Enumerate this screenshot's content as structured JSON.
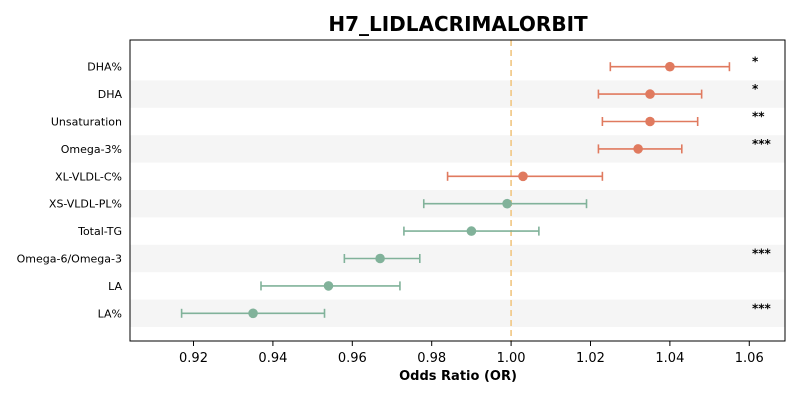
{
  "chart_data": {
    "type": "forest",
    "title": "H7_LIDLACRIMALORBIT",
    "xlabel": "Odds Ratio (OR)",
    "xlim": [
      0.904,
      1.069
    ],
    "xticks": [
      "0.92",
      "0.94",
      "0.96",
      "0.98",
      "1.00",
      "1.02",
      "1.04",
      "1.06"
    ],
    "reference_line": 1.0,
    "colors": {
      "positive": "#e07a5f",
      "negative": "#81b29a",
      "reference": "#f2cc8f",
      "stripe": "#f5f5f5"
    },
    "rows": [
      {
        "label": "DHA%",
        "or": 1.04,
        "lo": 1.025,
        "hi": 1.055,
        "sig": "*"
      },
      {
        "label": "DHA",
        "or": 1.035,
        "lo": 1.022,
        "hi": 1.048,
        "sig": "*"
      },
      {
        "label": "Unsaturation",
        "or": 1.035,
        "lo": 1.023,
        "hi": 1.047,
        "sig": "**"
      },
      {
        "label": "Omega-3%",
        "or": 1.032,
        "lo": 1.022,
        "hi": 1.043,
        "sig": "***"
      },
      {
        "label": "XL-VLDL-C%",
        "or": 1.003,
        "lo": 0.984,
        "hi": 1.023,
        "sig": ""
      },
      {
        "label": "XS-VLDL-PL%",
        "or": 0.999,
        "lo": 0.978,
        "hi": 1.019,
        "sig": ""
      },
      {
        "label": "Total-TG",
        "or": 0.99,
        "lo": 0.973,
        "hi": 1.007,
        "sig": ""
      },
      {
        "label": "Omega-6/Omega-3",
        "or": 0.967,
        "lo": 0.958,
        "hi": 0.977,
        "sig": "***"
      },
      {
        "label": "LA",
        "or": 0.954,
        "lo": 0.937,
        "hi": 0.972,
        "sig": ""
      },
      {
        "label": "LA%",
        "or": 0.935,
        "lo": 0.917,
        "hi": 0.953,
        "sig": "***"
      }
    ]
  }
}
